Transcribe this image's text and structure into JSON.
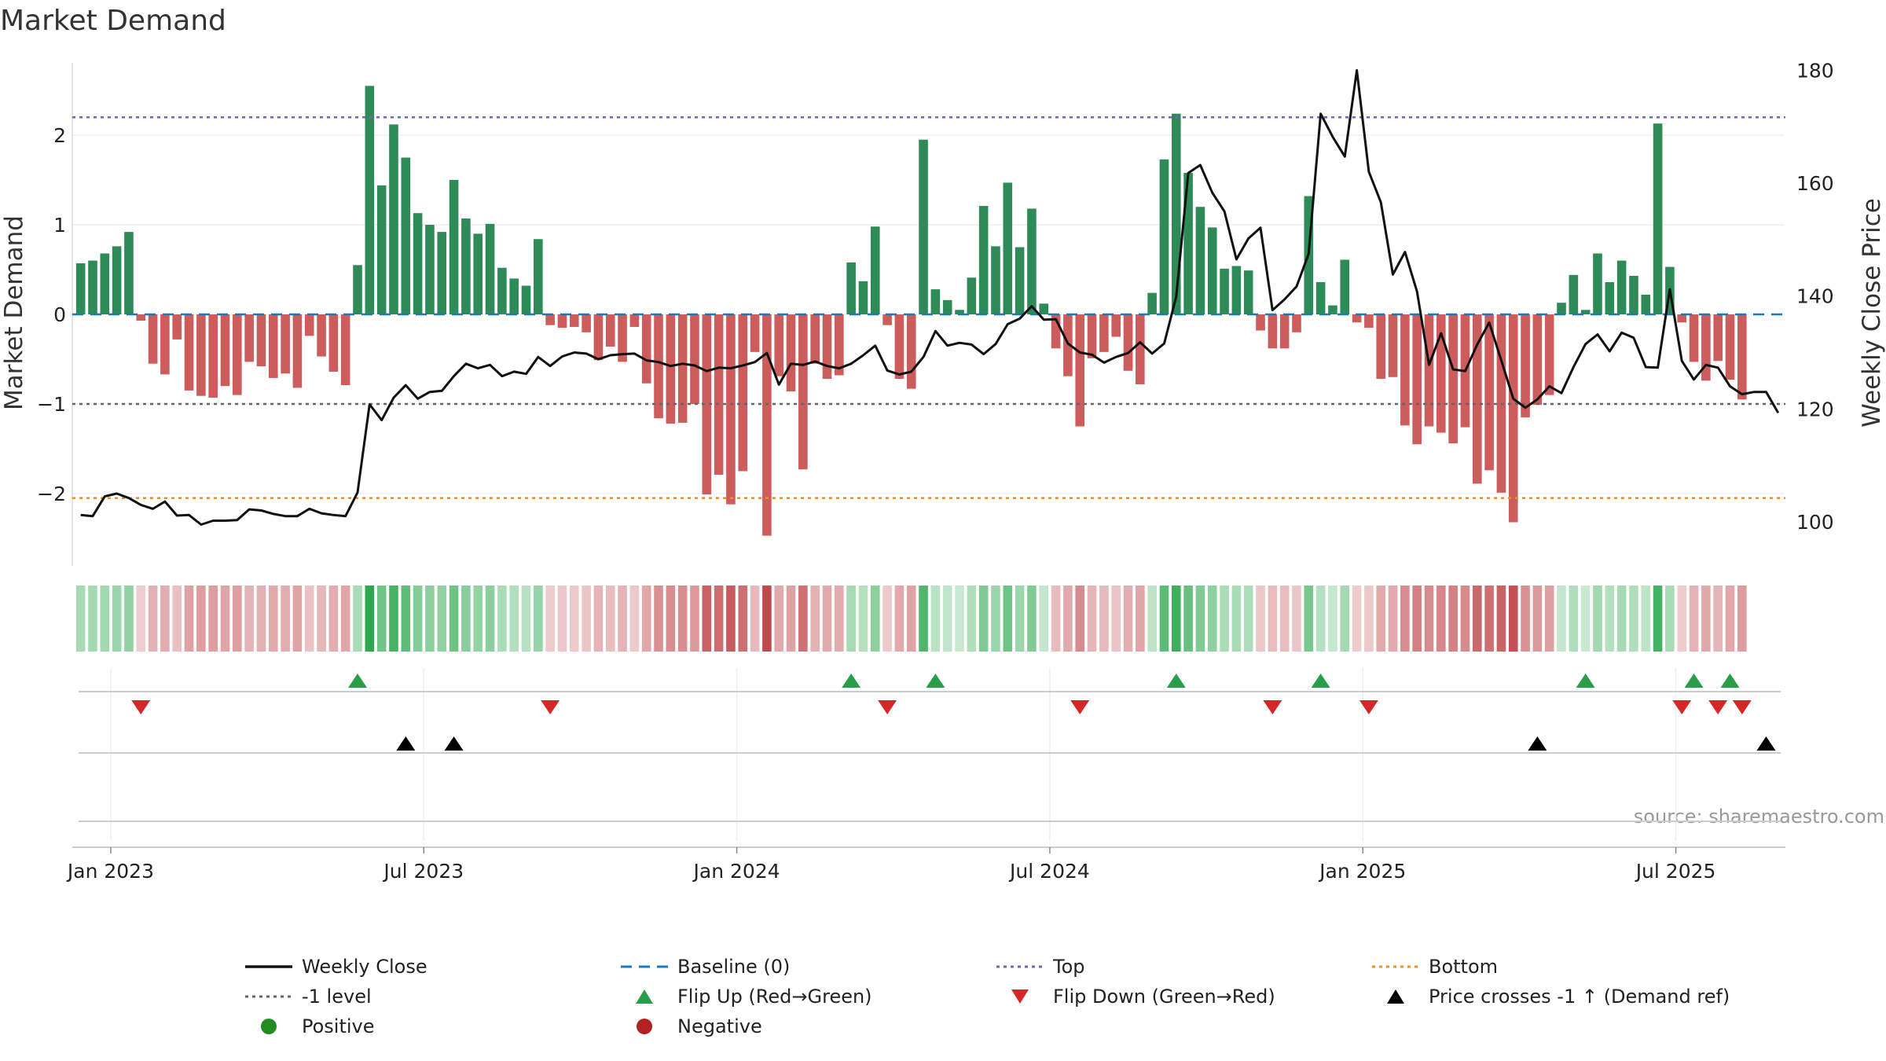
{
  "chart_data": {
    "type": "bar+line",
    "title": "Market Demand",
    "ylabel_left": "Market Demand",
    "ylabel_right": "Weekly Close Price",
    "ylim_left": [
      -2.7,
      2.7
    ],
    "ylim_right": [
      94,
      182
    ],
    "left_ticks": [
      2,
      1,
      0,
      -1,
      -2
    ],
    "left_tick_labels": [
      "2",
      "1",
      "0",
      "−1",
      "−2"
    ],
    "right_ticks": [
      180,
      160,
      140,
      120,
      100
    ],
    "right_tick_labels": [
      "180",
      "160",
      "140",
      "120",
      "100"
    ],
    "x_start": "2023-01-02",
    "x_tick_labels": [
      "Jan 2023",
      "Jul 2023",
      "Jan 2024",
      "Jul 2024",
      "Jan 2025",
      "Jul 2025"
    ],
    "x_tick_weeks": [
      2.5,
      28.5,
      54.5,
      80.5,
      106.5,
      132.5
    ],
    "levels": {
      "top": 2.2,
      "minus_one": -1.0,
      "bottom": -2.05,
      "baseline": 0
    },
    "demand": [
      0.57,
      0.6,
      0.68,
      0.76,
      0.92,
      -0.07,
      -0.55,
      -0.67,
      -0.28,
      -0.85,
      -0.91,
      -0.93,
      -0.8,
      -0.9,
      -0.53,
      -0.58,
      -0.71,
      -0.66,
      -0.82,
      -0.24,
      -0.47,
      -0.64,
      -0.79,
      0.55,
      2.55,
      1.44,
      2.12,
      1.75,
      1.13,
      1.0,
      0.92,
      1.5,
      1.07,
      0.9,
      1.01,
      0.52,
      0.4,
      0.32,
      0.84,
      -0.12,
      -0.15,
      -0.14,
      -0.2,
      -0.51,
      -0.36,
      -0.53,
      -0.14,
      -0.77,
      -1.16,
      -1.22,
      -1.21,
      -1.0,
      -2.01,
      -1.79,
      -2.12,
      -1.75,
      -0.42,
      -2.47,
      -0.69,
      -0.86,
      -1.73,
      -0.55,
      -0.72,
      -0.68,
      0.58,
      0.37,
      0.98,
      -0.12,
      -0.72,
      -0.83,
      1.95,
      0.28,
      0.16,
      0.05,
      0.41,
      1.21,
      0.76,
      1.47,
      0.75,
      1.18,
      0.12,
      -0.38,
      -0.69,
      -1.25,
      -0.49,
      -0.42,
      -0.25,
      -0.63,
      -0.78,
      0.24,
      1.73,
      2.24,
      1.58,
      1.2,
      0.97,
      0.51,
      0.54,
      0.49,
      -0.18,
      -0.38,
      -0.38,
      -0.2,
      1.32,
      0.36,
      0.1,
      0.61,
      -0.09,
      -0.15,
      -0.72,
      -0.7,
      -1.24,
      -1.45,
      -1.25,
      -1.32,
      -1.44,
      -1.26,
      -1.89,
      -1.74,
      -1.99,
      -2.32,
      -1.15,
      -1.01,
      -0.9,
      0.13,
      0.44,
      0.05,
      0.68,
      0.36,
      0.6,
      0.43,
      0.22,
      2.13,
      0.53,
      -0.09,
      -0.53,
      -0.74,
      -0.52,
      -0.73,
      -0.95
    ],
    "weekly_close": [
      101.2,
      101.0,
      104.5,
      105.0,
      104.2,
      103.0,
      102.3,
      103.6,
      101.1,
      101.2,
      99.5,
      100.2,
      100.2,
      100.3,
      102.2,
      102.0,
      101.4,
      101.0,
      101.0,
      102.3,
      101.5,
      101.2,
      101.0,
      105.2,
      120.8,
      118.0,
      122.0,
      124.2,
      121.8,
      123.0,
      123.2,
      125.8,
      128.0,
      127.2,
      127.8,
      125.8,
      126.6,
      126.2,
      129.2,
      127.6,
      129.3,
      130.0,
      129.8,
      128.8,
      129.5,
      129.7,
      129.8,
      128.6,
      128.3,
      127.6,
      128.0,
      127.7,
      126.7,
      127.3,
      127.2,
      127.7,
      128.3,
      129.9,
      124.3,
      128.0,
      127.8,
      128.4,
      127.6,
      127.2,
      128.0,
      129.5,
      131.2,
      126.8,
      126.1,
      126.6,
      129.2,
      133.8,
      131.2,
      131.7,
      131.4,
      129.7,
      131.5,
      135.0,
      136.0,
      138.2,
      135.8,
      135.9,
      131.6,
      130.0,
      129.6,
      128.2,
      129.2,
      129.9,
      131.8,
      129.8,
      131.6,
      139.9,
      161.8,
      163.2,
      158.3,
      155.0,
      146.5,
      150.2,
      152.1,
      137.5,
      139.4,
      141.7,
      147.5,
      172.3,
      168.2,
      164.7,
      180.0,
      162.0,
      156.6,
      143.8,
      147.8,
      140.8,
      127.8,
      133.4,
      127.0,
      126.7,
      131.4,
      135.3,
      128.6,
      121.8,
      120.2,
      121.7,
      124.0,
      122.8,
      127.4,
      131.5,
      133.2,
      130.2,
      133.5,
      132.6,
      127.4,
      127.3,
      141.2,
      128.5,
      125.2,
      127.8,
      127.3,
      124.0,
      122.6,
      123.0,
      123.0,
      119.3
    ],
    "flip_up_weeks": [
      23,
      64,
      71,
      91,
      103,
      125,
      134,
      137
    ],
    "flip_down_weeks": [
      5,
      39,
      67,
      83,
      99,
      107,
      133,
      136,
      138
    ],
    "cross_weeks": [
      27,
      31,
      121,
      140
    ],
    "source": "source: sharemaestro.com",
    "legend": [
      {
        "label": "Weekly Close",
        "marker": "line",
        "color": "#111111"
      },
      {
        "label": "Baseline (0)",
        "marker": "dash",
        "color": "#1f77b4"
      },
      {
        "label": "Top",
        "marker": "dot",
        "color": "#6a6ab0"
      },
      {
        "label": "Bottom",
        "marker": "dot",
        "color": "#e8902a"
      },
      {
        "label": "-1 level",
        "marker": "dot",
        "color": "#666666"
      },
      {
        "label": "Flip Up (Red→Green)",
        "marker": "triangle-up",
        "color": "#2a9d4b"
      },
      {
        "label": "Flip Down (Green→Red)",
        "marker": "triangle-down",
        "color": "#d62728"
      },
      {
        "label": "Price crosses -1 ↑ (Demand ref)",
        "marker": "triangle-up",
        "color": "#000000"
      },
      {
        "label": "Positive",
        "marker": "circle",
        "color": "#228b22"
      },
      {
        "label": "Negative",
        "marker": "circle",
        "color": "#b22222"
      }
    ]
  },
  "colors": {
    "positive_bar": "#2e8b57",
    "negative_bar": "#cd5c5c",
    "price_line": "#111111",
    "baseline": "#1f77b4",
    "top": "#6a6ab0",
    "bottom": "#e8902a",
    "minus_one": "#666666",
    "flip_up": "#2a9d4b",
    "flip_down": "#d62728",
    "cross": "#000000"
  }
}
